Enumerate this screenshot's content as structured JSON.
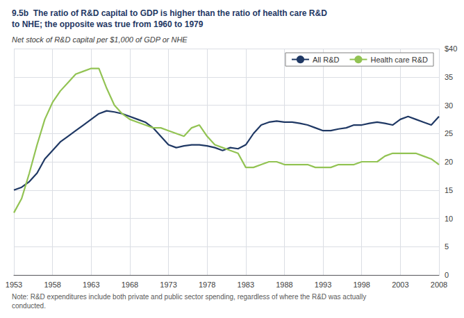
{
  "chart_data": {
    "type": "line",
    "title": "9.5b  The ratio of R&D capital to GDP is higher than the ratio of health care R&D\nto NHE; the opposite was true from 1960 to 1979",
    "subtitle": "Net stock of R&D capital per $1,000 of GDP or NHE",
    "note": "Note: R&D expenditures include both private and public sector spending, regardless of where the R&D was actually\nconducted.",
    "x": [
      1953,
      1954,
      1955,
      1956,
      1957,
      1958,
      1959,
      1960,
      1961,
      1962,
      1963,
      1964,
      1965,
      1966,
      1967,
      1968,
      1969,
      1970,
      1971,
      1972,
      1973,
      1974,
      1975,
      1976,
      1977,
      1978,
      1979,
      1980,
      1981,
      1982,
      1983,
      1984,
      1985,
      1986,
      1987,
      1988,
      1989,
      1990,
      1991,
      1992,
      1993,
      1994,
      1995,
      1996,
      1997,
      1998,
      1999,
      2000,
      2001,
      2002,
      2003,
      2004,
      2005,
      2006,
      2007,
      2008
    ],
    "series": [
      {
        "name": "All R&D",
        "color": "#1f3864",
        "values": [
          15.0,
          15.5,
          16.5,
          18.0,
          20.5,
          22.0,
          23.5,
          24.5,
          25.5,
          26.5,
          27.5,
          28.5,
          29.0,
          28.8,
          28.5,
          28.0,
          27.5,
          27.0,
          26.0,
          24.5,
          23.0,
          22.5,
          22.8,
          23.0,
          23.0,
          22.8,
          22.5,
          22.0,
          22.5,
          22.3,
          23.0,
          25.0,
          26.5,
          27.0,
          27.2,
          27.0,
          27.0,
          26.8,
          26.5,
          26.0,
          25.5,
          25.5,
          25.8,
          26.0,
          26.5,
          26.5,
          26.8,
          27.0,
          26.8,
          26.5,
          27.5,
          28.0,
          27.5,
          27.0,
          26.5,
          28.0
        ]
      },
      {
        "name": "Health care R&D",
        "color": "#92c353",
        "values": [
          11.0,
          13.5,
          18.0,
          23.0,
          27.5,
          30.5,
          32.5,
          34.0,
          35.5,
          36.0,
          36.5,
          36.5,
          33.0,
          30.0,
          28.5,
          27.5,
          27.0,
          26.5,
          26.0,
          26.0,
          25.5,
          25.0,
          24.5,
          26.0,
          26.5,
          24.5,
          23.0,
          22.5,
          22.0,
          21.5,
          19.0,
          19.0,
          19.5,
          20.0,
          20.0,
          19.5,
          19.5,
          19.5,
          19.5,
          19.0,
          19.0,
          19.0,
          19.5,
          19.5,
          19.5,
          20.0,
          20.0,
          20.0,
          21.0,
          21.5,
          21.5,
          21.5,
          21.5,
          21.0,
          20.5,
          19.5
        ]
      }
    ],
    "xlim": [
      1953,
      2008
    ],
    "xticks": [
      1953,
      1958,
      1963,
      1968,
      1973,
      1978,
      1983,
      1988,
      1993,
      1998,
      2003,
      2008
    ],
    "ylim": [
      0,
      40
    ],
    "yticks": [
      0,
      5,
      10,
      15,
      20,
      25,
      30,
      35,
      {
        "value": 40,
        "label": "$40"
      }
    ],
    "grid": true,
    "legend": "upper right"
  }
}
